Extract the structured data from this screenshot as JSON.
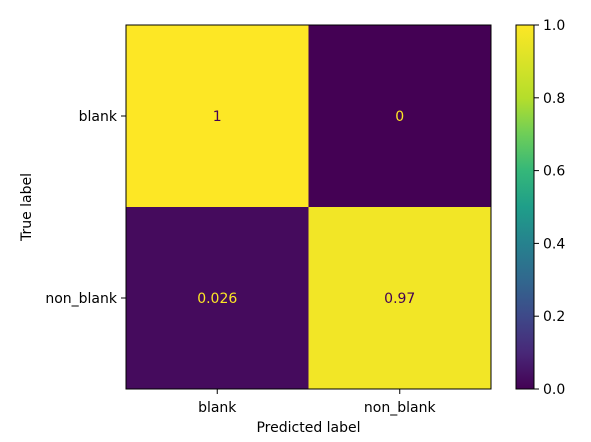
{
  "chart_data": {
    "type": "heatmap",
    "subtype": "confusion-matrix",
    "xlabel": "Predicted label",
    "ylabel": "True label",
    "x_categories": [
      "blank",
      "non_blank"
    ],
    "y_categories": [
      "blank",
      "non_blank"
    ],
    "values": [
      [
        1,
        0
      ],
      [
        0.026,
        0.97
      ]
    ],
    "cell_labels": [
      [
        "1",
        "0"
      ],
      [
        "0.026",
        "0.97"
      ]
    ],
    "colormap": "viridis",
    "colorbar": {
      "range": [
        0.0,
        1.0
      ],
      "ticks": [
        0.0,
        0.2,
        0.4,
        0.6,
        0.8,
        1.0
      ],
      "tick_labels": [
        "0.0",
        "0.2",
        "0.4",
        "0.6",
        "0.8",
        "1.0"
      ]
    },
    "grid": false,
    "colors": {
      "viridis_low": "#440154",
      "viridis_high": "#fde725",
      "text_on_dark": "#fde725",
      "text_on_light": "#440154"
    }
  }
}
